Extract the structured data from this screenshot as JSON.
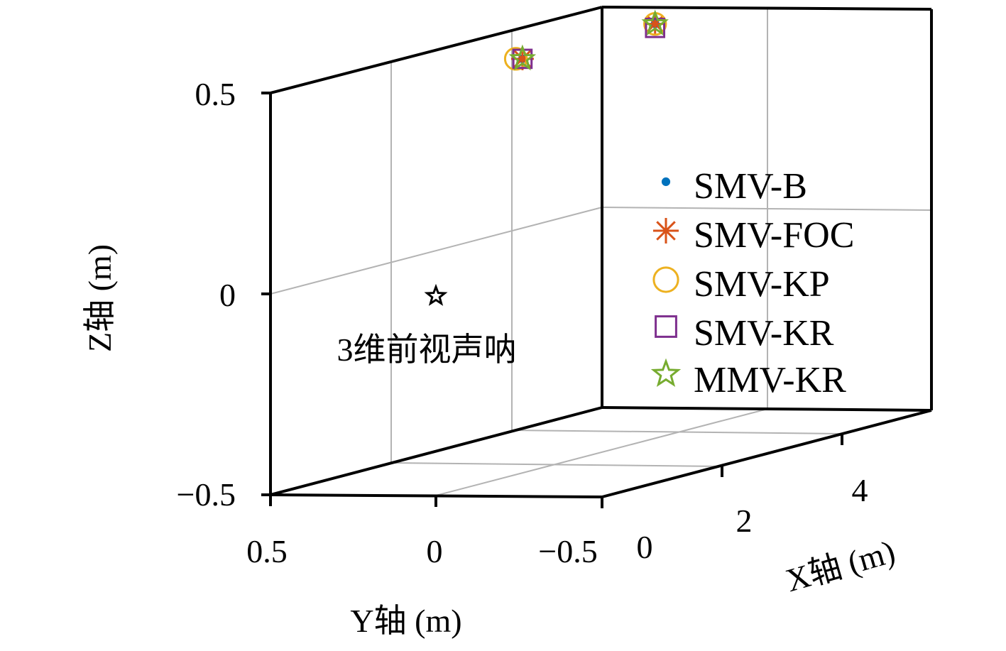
{
  "chart_data": {
    "type": "scatter",
    "projection": "3d",
    "xlabel": "X轴 (m)",
    "ylabel": "Y轴 (m)",
    "zlabel": "Z轴 (m)",
    "xlim": [
      0,
      5
    ],
    "ylim": [
      -0.5,
      0.5
    ],
    "zlim": [
      -0.5,
      0.5
    ],
    "x_ticks": [
      "0",
      "2",
      "4"
    ],
    "y_ticks": [
      "0.5",
      "0",
      "−0.5"
    ],
    "z_ticks": [
      "0.5",
      "0",
      "−0.5"
    ],
    "grid": true,
    "legend_position": "right",
    "series": [
      {
        "name": "SMV-B",
        "marker": "dot",
        "color": "#0072BD",
        "points": [
          [
            2,
            0.14,
            0.5
          ],
          [
            4,
            0.14,
            0.5
          ]
        ]
      },
      {
        "name": "SMV-FOC",
        "marker": "asterisk",
        "color": "#D95319",
        "points": [
          [
            2,
            0.14,
            0.5
          ],
          [
            4,
            0.14,
            0.5
          ]
        ]
      },
      {
        "name": "SMV-KP",
        "marker": "circle",
        "color": "#EDB120",
        "points": [
          [
            2,
            0.16,
            0.5
          ],
          [
            4,
            0.14,
            0.5
          ]
        ]
      },
      {
        "name": "SMV-KR",
        "marker": "square",
        "color": "#7E2F8E",
        "points": [
          [
            2,
            0.14,
            0.5
          ],
          [
            4,
            0.14,
            0.49
          ]
        ]
      },
      {
        "name": "MMV-KR",
        "marker": "pentagram",
        "color": "#77AC30",
        "points": [
          [
            2,
            0.14,
            0.5
          ],
          [
            4,
            0.14,
            0.5
          ]
        ]
      }
    ],
    "annotations": [
      {
        "text": "3维前视声呐",
        "marker": "pentagram",
        "color": "#000000",
        "point": [
          0,
          0,
          0
        ]
      }
    ]
  }
}
